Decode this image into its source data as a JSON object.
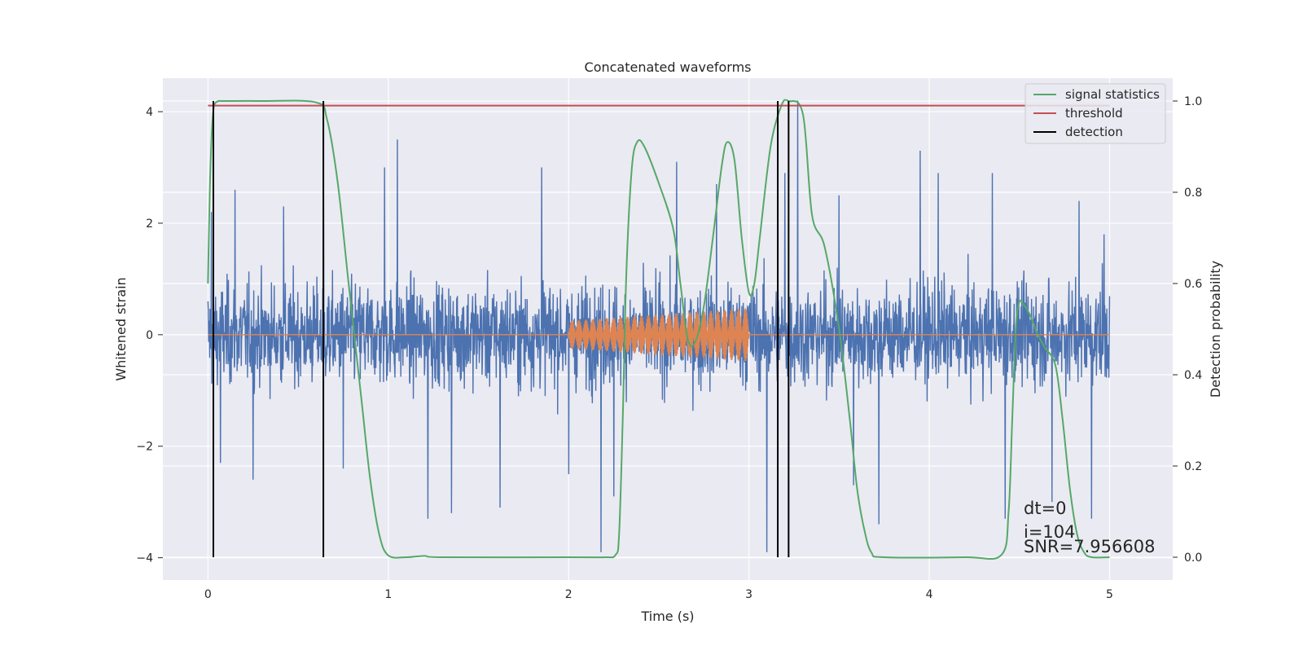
{
  "chart_data": {
    "type": "line",
    "title": "Concatenated waveforms",
    "xlabel": "Time (s)",
    "ylabel": "Whitened strain",
    "y2label": "Detection probability",
    "xlim": [
      -0.25,
      5.35
    ],
    "ylim": [
      -4.4,
      4.6
    ],
    "y2lim": [
      -0.05,
      1.05
    ],
    "x_ticks": [
      0,
      1,
      2,
      3,
      4,
      5
    ],
    "y_ticks": [
      -4,
      -2,
      0,
      2,
      4
    ],
    "y2_ticks": [
      0.0,
      0.2,
      0.4,
      0.6,
      0.8,
      1.0
    ],
    "x_tick_labels": [
      "0",
      "1",
      "2",
      "3",
      "4",
      "5"
    ],
    "y_tick_labels": [
      "−4",
      "−2",
      "0",
      "2",
      "4"
    ],
    "y2_tick_labels": [
      "0.0",
      "0.2",
      "0.4",
      "0.6",
      "0.8",
      "1.0"
    ],
    "grid": true,
    "legend_position": "top-right",
    "series": [
      {
        "kind": "noise",
        "color": "#4c72b0",
        "x_range": [
          0,
          5
        ],
        "note_values": "dense noisy strain trace, mostly within ±1.3 with peaks near ±3.6",
        "peaks": [
          [
            0.02,
            2.2
          ],
          [
            0.07,
            -2.3
          ],
          [
            0.15,
            2.6
          ],
          [
            0.25,
            -2.6
          ],
          [
            0.42,
            2.3
          ],
          [
            0.64,
            3.1
          ],
          [
            0.75,
            -2.4
          ],
          [
            0.98,
            3.0
          ],
          [
            1.05,
            3.5
          ],
          [
            1.22,
            -3.3
          ],
          [
            1.35,
            -3.2
          ],
          [
            1.62,
            -3.1
          ],
          [
            1.85,
            3.0
          ],
          [
            2.0,
            -2.5
          ],
          [
            2.18,
            -3.9
          ],
          [
            2.25,
            -2.9
          ],
          [
            2.6,
            3.1
          ],
          [
            2.82,
            2.7
          ],
          [
            3.1,
            -3.9
          ],
          [
            3.2,
            2.9
          ],
          [
            3.27,
            4.2
          ],
          [
            3.5,
            2.5
          ],
          [
            3.58,
            -2.7
          ],
          [
            3.72,
            -3.4
          ],
          [
            3.95,
            3.3
          ],
          [
            4.05,
            2.9
          ],
          [
            4.35,
            2.9
          ],
          [
            4.42,
            -3.3
          ],
          [
            4.68,
            -3.0
          ],
          [
            4.83,
            2.4
          ],
          [
            4.9,
            -3.3
          ],
          [
            4.97,
            1.8
          ]
        ]
      },
      {
        "kind": "injected_signal",
        "color": "#dd8452",
        "x_range": [
          2.0,
          3.0
        ],
        "amplitude_start": 0.25,
        "amplitude_end": 0.48
      },
      {
        "name": "signal statistics",
        "axis": "right",
        "color": "#55a868",
        "x": [
          0.0,
          0.01,
          0.02,
          0.03,
          0.04,
          0.06,
          0.1,
          0.3,
          0.6,
          0.66,
          0.72,
          0.78,
          0.85,
          0.9,
          0.95,
          1.0,
          1.1,
          1.2,
          1.3,
          2.0,
          2.2,
          2.26,
          2.28,
          2.3,
          2.32,
          2.35,
          2.38,
          2.42,
          2.5,
          2.58,
          2.62,
          2.66,
          2.7,
          2.75,
          2.8,
          2.85,
          2.88,
          2.92,
          2.96,
          3.0,
          3.03,
          3.06,
          3.12,
          3.18,
          3.22,
          3.3,
          3.35,
          3.42,
          3.5,
          3.56,
          3.6,
          3.64,
          3.68,
          3.75,
          4.2,
          4.4,
          4.44,
          4.46,
          4.48,
          4.5,
          4.53,
          4.56,
          4.6,
          4.64,
          4.7,
          4.74,
          4.78,
          4.82,
          4.86,
          4.9,
          5.0
        ],
        "y": [
          0.6,
          0.8,
          0.92,
          0.98,
          0.995,
          1.0,
          1.0,
          1.0,
          0.997,
          0.96,
          0.82,
          0.6,
          0.35,
          0.17,
          0.05,
          0.004,
          0.0,
          0.003,
          0.0,
          0.0,
          0.0,
          0.005,
          0.05,
          0.3,
          0.62,
          0.85,
          0.91,
          0.9,
          0.82,
          0.72,
          0.6,
          0.48,
          0.47,
          0.55,
          0.7,
          0.86,
          0.91,
          0.87,
          0.7,
          0.58,
          0.6,
          0.7,
          0.9,
          0.99,
          1.0,
          0.97,
          0.75,
          0.68,
          0.5,
          0.3,
          0.15,
          0.06,
          0.01,
          0.0,
          0.0,
          0.005,
          0.1,
          0.3,
          0.5,
          0.56,
          0.55,
          0.53,
          0.49,
          0.46,
          0.42,
          0.3,
          0.15,
          0.05,
          0.01,
          0.0,
          0.0
        ]
      },
      {
        "name": "threshold",
        "axis": "right",
        "color": "#c44e52",
        "x": [
          0.0,
          5.0
        ],
        "y": [
          0.99,
          0.99
        ]
      },
      {
        "name": "detection",
        "axis": "right",
        "color": "#000000",
        "kind": "vlines",
        "x": [
          0.03,
          0.64,
          3.16,
          3.22
        ],
        "y_from": 0.0,
        "y_to": 1.0
      }
    ],
    "annotations": [
      "dt=0",
      "i=104",
      "SNR=7.956608"
    ]
  }
}
